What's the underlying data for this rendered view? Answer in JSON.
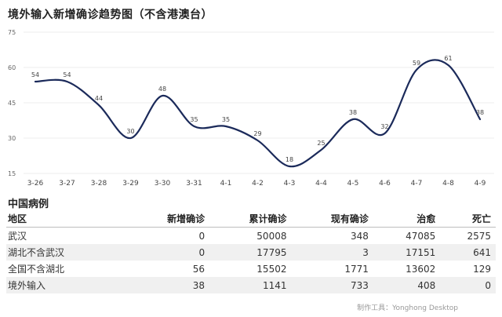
{
  "page": {
    "title": "境外输入新增确诊趋势图（不含港澳台）",
    "section_title": "中国病例",
    "footer": "制作工具：Yonghong Desktop"
  },
  "chart_data": {
    "type": "line",
    "title": "境外输入新增确诊趋势图（不含港澳台）",
    "categories": [
      "3-26",
      "3-27",
      "3-28",
      "3-29",
      "3-30",
      "3-31",
      "4-1",
      "4-2",
      "4-3",
      "4-4",
      "4-5",
      "4-6",
      "4-7",
      "4-8",
      "4-9"
    ],
    "series": [
      {
        "values": [
          54,
          54,
          44,
          30,
          48,
          35,
          35,
          29,
          18,
          25,
          38,
          32,
          59,
          61,
          38
        ],
        "color": "#1b2a5a"
      }
    ],
    "yticks": [
      15,
      30,
      45,
      60,
      75
    ],
    "ylim": [
      15,
      75
    ],
    "grid": true,
    "xlabel": "",
    "ylabel": ""
  },
  "table": {
    "columns": [
      "地区",
      "新增确诊",
      "累计确诊",
      "现有确诊",
      "治愈",
      "死亡"
    ],
    "rows": [
      [
        "武汉",
        "0",
        "50008",
        "348",
        "47085",
        "2575"
      ],
      [
        "湖北不含武汉",
        "0",
        "17795",
        "3",
        "17151",
        "641"
      ],
      [
        "全国不含湖北",
        "56",
        "15502",
        "1771",
        "13602",
        "129"
      ],
      [
        "境外输入",
        "38",
        "1141",
        "733",
        "408",
        "0"
      ]
    ]
  }
}
